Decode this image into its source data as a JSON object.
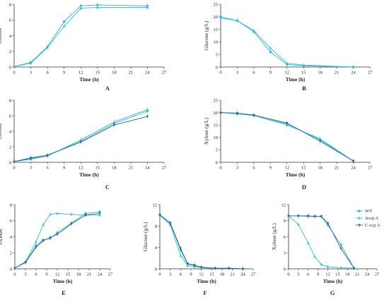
{
  "colors": {
    "wt": "#2bb8b8",
    "mutant": "#35b8d2",
    "complement": "#3c5a8c",
    "axis": "#333333",
    "text": "#222222"
  },
  "legend": {
    "placement": "right",
    "entries": [
      "WT",
      "Δccp A",
      "C-ccp A"
    ]
  },
  "chart_data": [
    {
      "type": "line",
      "panel_label": "A",
      "xlabel": "Time (h)",
      "ylabel": "OD600",
      "xlim": [
        0,
        27
      ],
      "ylim": [
        0,
        8
      ],
      "x_ticks": [
        "0",
        "3",
        "6",
        "9",
        "12",
        "15",
        "18",
        "21",
        "24",
        "27"
      ],
      "y_ticks": [
        "0",
        "2",
        "4",
        "6",
        "8"
      ],
      "series": [
        {
          "key": "wt",
          "x": [
            0,
            3,
            6,
            9,
            12,
            15,
            24
          ],
          "y": [
            0.05,
            0.6,
            2.6,
            5.8,
            7.8,
            7.9,
            7.8
          ]
        },
        {
          "key": "mutant",
          "x": [
            0,
            3,
            6,
            9,
            12,
            15,
            24
          ],
          "y": [
            0.05,
            0.5,
            2.5,
            5.2,
            7.5,
            7.6,
            7.6
          ]
        }
      ]
    },
    {
      "type": "line",
      "panel_label": "B",
      "xlabel": "Time (h)",
      "ylabel": "Glucose (g/L)",
      "xlim": [
        0,
        27
      ],
      "ylim": [
        0,
        25
      ],
      "x_ticks": [
        "0",
        "3",
        "6",
        "9",
        "12",
        "15",
        "18",
        "21",
        "24",
        "27"
      ],
      "y_ticks": [
        "0",
        "5",
        "10",
        "15",
        "20",
        "25"
      ],
      "series": [
        {
          "key": "wt",
          "x": [
            0,
            3,
            6,
            9,
            12,
            15,
            24
          ],
          "y": [
            20,
            18.5,
            14,
            6,
            1,
            0.5,
            0
          ]
        },
        {
          "key": "mutant",
          "x": [
            0,
            3,
            6,
            9,
            12,
            15,
            24
          ],
          "y": [
            19.5,
            18.5,
            14.5,
            7.5,
            1.5,
            0.8,
            0
          ]
        }
      ]
    },
    {
      "type": "line",
      "panel_label": "C",
      "xlabel": "Time (h)",
      "ylabel": "OD600",
      "xlim": [
        0,
        27
      ],
      "ylim": [
        0,
        8
      ],
      "x_ticks": [
        "0",
        "3",
        "6",
        "9",
        "12",
        "15",
        "18",
        "21",
        "24",
        "27"
      ],
      "y_ticks": [
        "0",
        "2",
        "4",
        "6",
        "8"
      ],
      "series": [
        {
          "key": "wt",
          "x": [
            0,
            3,
            6,
            12,
            18,
            24
          ],
          "y": [
            0.1,
            0.6,
            0.9,
            2.7,
            5.0,
            6.6
          ]
        },
        {
          "key": "mutant",
          "x": [
            0,
            3,
            6,
            12,
            18,
            24
          ],
          "y": [
            0.1,
            0.4,
            0.8,
            2.9,
            5.2,
            6.8
          ]
        },
        {
          "key": "complement",
          "x": [
            0,
            3,
            6,
            12,
            18,
            24
          ],
          "y": [
            0.1,
            0.5,
            0.9,
            2.6,
            4.8,
            5.9
          ]
        }
      ]
    },
    {
      "type": "line",
      "panel_label": "D",
      "xlabel": "Time (h)",
      "ylabel": "Xylose (g/L)",
      "xlim": [
        0,
        27
      ],
      "ylim": [
        0,
        25
      ],
      "x_ticks": [
        "0",
        "3",
        "6",
        "9",
        "12",
        "15",
        "18",
        "21",
        "24",
        "27"
      ],
      "y_ticks": [
        "0",
        "5",
        "10",
        "15",
        "20",
        "25"
      ],
      "series": [
        {
          "key": "wt",
          "x": [
            0,
            3,
            6,
            12,
            18,
            24
          ],
          "y": [
            20,
            19.5,
            19,
            15.5,
            9,
            0.5
          ]
        },
        {
          "key": "mutant",
          "x": [
            0,
            3,
            6,
            12,
            18,
            24
          ],
          "y": [
            20,
            19.5,
            18.8,
            15,
            9.5,
            0.5
          ]
        },
        {
          "key": "complement",
          "x": [
            0,
            3,
            6,
            12,
            18,
            24
          ],
          "y": [
            20,
            19.8,
            19,
            15.8,
            8.5,
            0.5
          ]
        }
      ]
    },
    {
      "type": "line",
      "panel_label": "E",
      "xlabel": "Time (h)",
      "ylabel": "OD600",
      "xlim": [
        0,
        27
      ],
      "ylim": [
        0,
        8
      ],
      "x_ticks": [
        "0",
        "3",
        "6",
        "9",
        "12",
        "15",
        "18",
        "21",
        "24",
        "27"
      ],
      "y_ticks": [
        "0",
        "2",
        "4",
        "6",
        "8"
      ],
      "series": [
        {
          "key": "wt",
          "x": [
            0,
            3,
            6,
            8,
            10,
            12,
            16,
            20,
            24
          ],
          "y": [
            0.1,
            0.8,
            2.9,
            3.6,
            3.8,
            4.5,
            5.7,
            6.9,
            7.1
          ]
        },
        {
          "key": "mutant",
          "x": [
            0,
            3,
            6,
            8,
            10,
            12,
            16,
            20,
            24
          ],
          "y": [
            0.1,
            0.9,
            3.4,
            5.5,
            6.8,
            6.9,
            6.8,
            6.7,
            6.7
          ]
        },
        {
          "key": "complement",
          "x": [
            0,
            3,
            6,
            8,
            10,
            12,
            16,
            20,
            24
          ],
          "y": [
            0.1,
            0.8,
            2.7,
            3.5,
            3.9,
            4.3,
            5.6,
            6.7,
            6.9
          ]
        }
      ]
    },
    {
      "type": "line",
      "panel_label": "F",
      "xlabel": "Time (h)",
      "ylabel": "Glucose (g/L)",
      "xlim": [
        0,
        27
      ],
      "ylim": [
        0,
        12
      ],
      "x_ticks": [
        "0",
        "3",
        "6",
        "9",
        "12",
        "15",
        "18",
        "21",
        "24",
        "27"
      ],
      "y_ticks": [
        "0",
        "4",
        "8",
        "12"
      ],
      "series": [
        {
          "key": "wt",
          "x": [
            0,
            3,
            6,
            8,
            10,
            12,
            16,
            20,
            24
          ],
          "y": [
            10.1,
            8.5,
            3.5,
            0.9,
            0.6,
            0.3,
            0.1,
            0.1,
            0
          ]
        },
        {
          "key": "mutant",
          "x": [
            0,
            3,
            6,
            8,
            10,
            12,
            16,
            20,
            24
          ],
          "y": [
            10.0,
            8.2,
            2.5,
            0.6,
            0.4,
            0.2,
            0.1,
            0.1,
            0
          ]
        },
        {
          "key": "complement",
          "x": [
            0,
            3,
            6,
            8,
            10,
            12,
            16,
            20,
            24
          ],
          "y": [
            10.1,
            8.6,
            3.8,
            1.0,
            0.7,
            0.3,
            0.1,
            0.1,
            0
          ]
        }
      ]
    },
    {
      "type": "line",
      "panel_label": "G",
      "xlabel": "Time (h)",
      "ylabel": "Xylose (g/L)",
      "xlim": [
        0,
        27
      ],
      "ylim": [
        0,
        12
      ],
      "x_ticks": [
        "0",
        "3",
        "6",
        "9",
        "12",
        "15",
        "18",
        "21",
        "24",
        "27"
      ],
      "y_ticks": [
        "0",
        "3",
        "6",
        "9",
        "12"
      ],
      "series": [
        {
          "key": "wt",
          "x": [
            0,
            3,
            6,
            8,
            10,
            12,
            16,
            20
          ],
          "y": [
            9.9,
            9.9,
            9.8,
            9.8,
            9.8,
            8.2,
            4.5,
            0.1
          ]
        },
        {
          "key": "mutant",
          "x": [
            0,
            3,
            6,
            8,
            10,
            12,
            16,
            20
          ],
          "y": [
            9.9,
            8.3,
            4.8,
            2.3,
            0.8,
            0.4,
            0.2,
            0.1
          ]
        },
        {
          "key": "complement",
          "x": [
            0,
            3,
            6,
            8,
            10,
            12,
            16,
            20
          ],
          "y": [
            9.9,
            9.9,
            9.9,
            9.8,
            9.8,
            8.5,
            3.8,
            0.1
          ]
        }
      ]
    }
  ]
}
